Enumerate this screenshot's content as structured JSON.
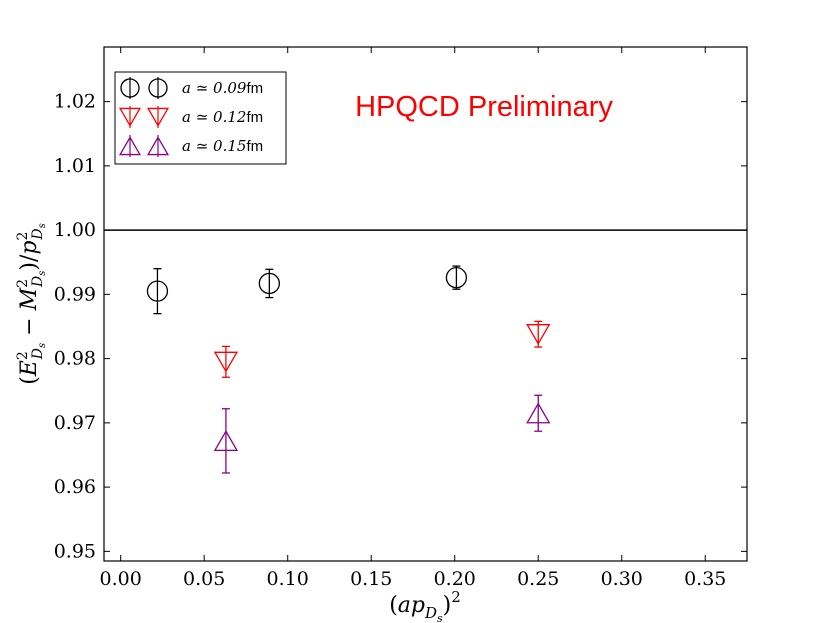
{
  "chart_data": {
    "type": "scatter",
    "annotation": "HPQCD Preliminary",
    "annotation_color": "#ff0000",
    "xlabel": "(ap_{D_s})^2",
    "ylabel": "(E^2_{D_s} − M^2_{D_s})/p^2_{D_s}",
    "xlim": [
      -0.01,
      0.375
    ],
    "ylim": [
      0.9485,
      1.0285
    ],
    "xticks": [
      "0.00",
      "0.05",
      "0.10",
      "0.15",
      "0.20",
      "0.25",
      "0.30",
      "0.35"
    ],
    "yticks": [
      "0.95",
      "0.96",
      "0.97",
      "0.98",
      "0.99",
      "1.00",
      "1.01",
      "1.02"
    ],
    "reference_line_y": 1.0,
    "grid": false,
    "legend_position": "top-left",
    "series": [
      {
        "name": "a ≃ 0.09fm",
        "legend_var": "a ≃ 0.09",
        "legend_unit": "fm",
        "marker": "circle",
        "color": "#000000",
        "points": [
          {
            "x": 0.022,
            "y": 0.9905,
            "err": 0.0035
          },
          {
            "x": 0.089,
            "y": 0.9917,
            "err": 0.0022
          },
          {
            "x": 0.201,
            "y": 0.9926,
            "err": 0.0018
          }
        ]
      },
      {
        "name": "a ≃ 0.12fm",
        "legend_var": "a ≃ 0.12",
        "legend_unit": "fm",
        "marker": "triangle-down",
        "color": "#ff0000",
        "points": [
          {
            "x": 0.063,
            "y": 0.9795,
            "err": 0.0024
          },
          {
            "x": 0.25,
            "y": 0.9838,
            "err": 0.002
          }
        ]
      },
      {
        "name": "a ≃ 0.15fm",
        "legend_var": "a ≃ 0.15",
        "legend_unit": "fm",
        "marker": "triangle-up",
        "color": "#8b008b",
        "points": [
          {
            "x": 0.063,
            "y": 0.9672,
            "err": 0.005
          },
          {
            "x": 0.25,
            "y": 0.9715,
            "err": 0.0028
          }
        ]
      }
    ]
  }
}
